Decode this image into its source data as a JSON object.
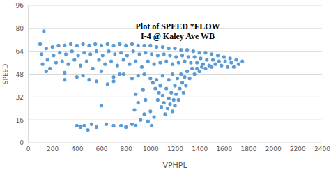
{
  "chart_data": {
    "type": "scatter",
    "title": "Plot of SPEED *FLOW",
    "subtitle": "I-4 @ Kaley Ave WB",
    "x_label": "VPHPL",
    "y_label": "SPEED",
    "color": "#5b9bd5",
    "marker": "circle",
    "grid": true,
    "xlim": [
      0,
      2400
    ],
    "xticks": [
      0,
      200,
      400,
      600,
      800,
      1000,
      1200,
      1400,
      1600,
      1800,
      2000,
      2200,
      2400
    ],
    "ylim": [
      0,
      96
    ],
    "yticks": [
      0,
      16,
      32,
      48,
      64,
      80,
      96
    ],
    "x": [
      100,
      110,
      120,
      130,
      150,
      160,
      180,
      200,
      210,
      230,
      250,
      260,
      280,
      300,
      310,
      330,
      350,
      360,
      380,
      400,
      410,
      430,
      450,
      460,
      480,
      500,
      510,
      530,
      550,
      560,
      580,
      600,
      610,
      630,
      650,
      660,
      680,
      700,
      710,
      730,
      750,
      760,
      780,
      800,
      810,
      830,
      850,
      860,
      880,
      900,
      910,
      930,
      950,
      960,
      980,
      1000,
      1010,
      1030,
      1050,
      1060,
      1080,
      1100,
      1110,
      1130,
      1150,
      1160,
      1180,
      1200,
      1210,
      1230,
      1250,
      1260,
      1280,
      1300,
      1310,
      1330,
      1350,
      1360,
      1380,
      1400,
      1410,
      1430,
      1450,
      1460,
      1480,
      1500,
      1510,
      1530,
      1550,
      1560,
      1580,
      1600,
      1610,
      1630,
      1650,
      1660,
      1680,
      1700,
      1720,
      1750,
      150,
      300,
      450,
      600,
      700,
      750,
      850,
      900,
      950,
      1000,
      1020,
      1040,
      1050,
      1060,
      1070,
      1080,
      1090,
      1100,
      1100,
      1110,
      1120,
      1130,
      1140,
      1150,
      1150,
      1160,
      1170,
      1180,
      1180,
      1190,
      1200,
      1200,
      1210,
      1220,
      1230,
      1240,
      1250,
      1260,
      1270,
      1280,
      1290,
      1300,
      1320,
      1340,
      1360,
      1380,
      1400,
      1420,
      1450,
      1500,
      400,
      430,
      460,
      490,
      520,
      560,
      640,
      700,
      760,
      800,
      850,
      880,
      920,
      950,
      980,
      1000,
      1010,
      1030,
      870,
      600,
      650,
      500,
      560,
      700,
      400,
      300,
      780,
      880,
      900,
      960,
      940
    ],
    "values": [
      69,
      62,
      55,
      78,
      66,
      58,
      52,
      67,
      61,
      56,
      68,
      63,
      57,
      68,
      62,
      55,
      69,
      64,
      58,
      68,
      61,
      54,
      69,
      63,
      57,
      68,
      62,
      52,
      69,
      64,
      58,
      68,
      61,
      55,
      69,
      64,
      57,
      68,
      62,
      54,
      69,
      63,
      58,
      68,
      61,
      55,
      69,
      64,
      57,
      68,
      62,
      53,
      68,
      63,
      57,
      68,
      62,
      55,
      67,
      61,
      56,
      67,
      62,
      57,
      66,
      61,
      55,
      66,
      60,
      56,
      65,
      61,
      57,
      65,
      60,
      56,
      64,
      60,
      56,
      63,
      59,
      55,
      63,
      58,
      54,
      62,
      58,
      55,
      61,
      57,
      54,
      60,
      57,
      53,
      59,
      56,
      53,
      58,
      55,
      57,
      50,
      49,
      47,
      50,
      46,
      48,
      45,
      47,
      48,
      45,
      42,
      38,
      44,
      30,
      35,
      40,
      25,
      33,
      47,
      28,
      20,
      38,
      24,
      31,
      44,
      27,
      35,
      22,
      48,
      30,
      40,
      26,
      34,
      45,
      30,
      38,
      48,
      42,
      35,
      46,
      40,
      50,
      45,
      52,
      48,
      52,
      50,
      53,
      52,
      53,
      12,
      11,
      12,
      9,
      13,
      11,
      13,
      12,
      12,
      11,
      13,
      12,
      16,
      20,
      15,
      22,
      12,
      18,
      23,
      26,
      41,
      44,
      43,
      43,
      46,
      44,
      48,
      34,
      28,
      30,
      37
    ]
  }
}
